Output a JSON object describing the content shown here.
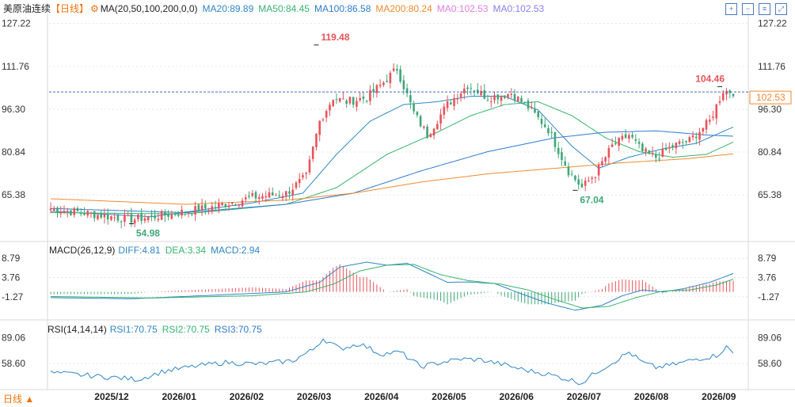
{
  "symbol": "美原油连续",
  "period_tag": "【日线】",
  "colors": {
    "up": "#e8535a",
    "down": "#3fa776",
    "ma20": "#2f86c8",
    "ma50": "#36b36f",
    "ma100": "#2e7bcf",
    "ma200": "#f08a2e",
    "diff": "#2f86c8",
    "dea": "#36b36f",
    "rsi": "#2f86c8",
    "axis_label": "#333333",
    "grid": "#e6e6e6"
  },
  "ma_header": {
    "name": "MA(20,50,100,200,0,0)",
    "ma20": "MA20:89.89",
    "ma50": "MA50:84.45",
    "ma100": "MA100:86.58",
    "ma200": "MA200:80.24",
    "ma0a": "MA0:102.53",
    "ma0b": "MA0:102.53"
  },
  "macd_header": {
    "name": "MACD(26,12,9)",
    "diff": "DIFF:4.81",
    "dea": "DEA:3.34",
    "macd": "MACD:2.94"
  },
  "rsi_header": {
    "name": "RSI(14,14,14)",
    "rsi1": "RSI1:70.75",
    "rsi2": "RSI2:70.75",
    "rsi3": "RSI3:70.75"
  },
  "toolbar_icons": [
    "zoom-in-icon",
    "zoom-out-icon",
    "chart-settings-icon",
    "expand-icon"
  ],
  "bottom_tab": "日线 ▲",
  "chart_data": [
    {
      "type": "candlestick",
      "title": "美原油连续【日线】",
      "y_ticks": [
        "127.22",
        "111.76",
        "96.30",
        "80.84",
        "65.38"
      ],
      "ylim": [
        50.0,
        130.0
      ],
      "x_tick_labels": [
        "2025/12",
        "2026/01",
        "2026/02",
        "2026/03",
        "2026/04",
        "2026/05",
        "2026/06",
        "2026/07",
        "2026/08",
        "2026/09"
      ],
      "last_price": "102.53",
      "annotations": [
        {
          "label": "119.48",
          "x_index": 79,
          "value": 119.48,
          "color": "up"
        },
        {
          "label": "54.98",
          "x_index": 24,
          "value": 54.98,
          "color": "down"
        },
        {
          "label": "67.04",
          "x_index": 156,
          "value": 67.04,
          "color": "down"
        },
        {
          "label": "104.46",
          "x_index": 199,
          "value": 104.46,
          "color": "up"
        }
      ],
      "close_anchors": [
        [
          0,
          60.5
        ],
        [
          12,
          58.5
        ],
        [
          24,
          56.5
        ],
        [
          36,
          58.5
        ],
        [
          48,
          61.0
        ],
        [
          60,
          64.5
        ],
        [
          70,
          66.0
        ],
        [
          76,
          72.0
        ],
        [
          80,
          92.0
        ],
        [
          84,
          100.5
        ],
        [
          88,
          99.0
        ],
        [
          94,
          100.5
        ],
        [
          99,
          106.0
        ],
        [
          103,
          111.0
        ],
        [
          108,
          95.0
        ],
        [
          112,
          87.0
        ],
        [
          118,
          98.0
        ],
        [
          124,
          105.0
        ],
        [
          130,
          100.5
        ],
        [
          137,
          102.0
        ],
        [
          142,
          97.0
        ],
        [
          148,
          89.0
        ],
        [
          154,
          74.0
        ],
        [
          158,
          68.0
        ],
        [
          162,
          73.0
        ],
        [
          167,
          83.0
        ],
        [
          172,
          87.0
        ],
        [
          176,
          81.0
        ],
        [
          180,
          79.0
        ],
        [
          185,
          83.0
        ],
        [
          190,
          85.0
        ],
        [
          196,
          92.0
        ],
        [
          200,
          103.0
        ],
        [
          203,
          102.53
        ]
      ],
      "ma_lines": [
        {
          "name": "MA20",
          "color": "ma20",
          "points": [
            [
              0,
              59.5
            ],
            [
              30,
              57.5
            ],
            [
              60,
              62.5
            ],
            [
              75,
              66.0
            ],
            [
              85,
              80.0
            ],
            [
              95,
              92.0
            ],
            [
              105,
              98.0
            ],
            [
              115,
              99.0
            ],
            [
              125,
              101.0
            ],
            [
              135,
              101.0
            ],
            [
              145,
              96.0
            ],
            [
              155,
              83.0
            ],
            [
              163,
              75.0
            ],
            [
              172,
              79.0
            ],
            [
              182,
              82.0
            ],
            [
              192,
              84.0
            ],
            [
              203,
              89.89
            ]
          ]
        },
        {
          "name": "MA50",
          "color": "ma50",
          "points": [
            [
              0,
              59.0
            ],
            [
              40,
              58.5
            ],
            [
              70,
              62.0
            ],
            [
              85,
              68.0
            ],
            [
              100,
              80.0
            ],
            [
              115,
              88.0
            ],
            [
              125,
              94.0
            ],
            [
              135,
              98.0
            ],
            [
              145,
              99.0
            ],
            [
              155,
              94.0
            ],
            [
              165,
              86.0
            ],
            [
              175,
              81.0
            ],
            [
              185,
              79.0
            ],
            [
              195,
              80.0
            ],
            [
              203,
              84.45
            ]
          ]
        },
        {
          "name": "MA100",
          "color": "ma100",
          "points": [
            [
              0,
              60.5
            ],
            [
              40,
              59.0
            ],
            [
              70,
              62.0
            ],
            [
              90,
              66.0
            ],
            [
              110,
              74.0
            ],
            [
              130,
              81.0
            ],
            [
              150,
              86.0
            ],
            [
              165,
              88.0
            ],
            [
              180,
              88.5
            ],
            [
              195,
              87.0
            ],
            [
              203,
              86.58
            ]
          ]
        },
        {
          "name": "MA200",
          "color": "ma200",
          "points": [
            [
              0,
              64.0
            ],
            [
              40,
              62.0
            ],
            [
              70,
              63.5
            ],
            [
              90,
              66.0
            ],
            [
              110,
              70.0
            ],
            [
              130,
              73.0
            ],
            [
              150,
              75.0
            ],
            [
              170,
              77.0
            ],
            [
              190,
              78.5
            ],
            [
              203,
              80.24
            ]
          ]
        }
      ]
    },
    {
      "type": "macd",
      "title": "MACD(26,12,9)",
      "y_ticks": [
        "8.79",
        "3.76",
        "-1.27"
      ],
      "ylim": [
        -6.5,
        10.5
      ],
      "diff_anchors": [
        [
          0,
          -1.5
        ],
        [
          24,
          -1.8
        ],
        [
          50,
          -0.8
        ],
        [
          70,
          0.0
        ],
        [
          80,
          2.5
        ],
        [
          86,
          6.5
        ],
        [
          94,
          7.8
        ],
        [
          100,
          7.0
        ],
        [
          106,
          7.5
        ],
        [
          112,
          5.0
        ],
        [
          118,
          2.5
        ],
        [
          124,
          2.6
        ],
        [
          132,
          2.2
        ],
        [
          140,
          -0.5
        ],
        [
          148,
          -3.0
        ],
        [
          156,
          -4.8
        ],
        [
          164,
          -3.5
        ],
        [
          170,
          -1.0
        ],
        [
          176,
          0.5
        ],
        [
          182,
          0.0
        ],
        [
          188,
          0.8
        ],
        [
          196,
          2.5
        ],
        [
          203,
          4.81
        ]
      ],
      "dea_anchors": [
        [
          0,
          -1.2
        ],
        [
          30,
          -1.6
        ],
        [
          60,
          -1.0
        ],
        [
          76,
          0.0
        ],
        [
          84,
          2.0
        ],
        [
          92,
          5.5
        ],
        [
          100,
          7.0
        ],
        [
          108,
          7.2
        ],
        [
          116,
          4.5
        ],
        [
          124,
          3.0
        ],
        [
          134,
          2.0
        ],
        [
          142,
          0.5
        ],
        [
          150,
          -2.0
        ],
        [
          158,
          -4.2
        ],
        [
          166,
          -3.8
        ],
        [
          174,
          -1.5
        ],
        [
          182,
          0.2
        ],
        [
          190,
          0.5
        ],
        [
          198,
          1.8
        ],
        [
          203,
          3.34
        ]
      ]
    },
    {
      "type": "line",
      "title": "RSI(14,14,14)",
      "y_ticks": [
        "89.06",
        "58.60"
      ],
      "ylim": [
        30.0,
        95.0
      ],
      "rsi_anchors": [
        [
          0,
          48.0
        ],
        [
          10,
          45.0
        ],
        [
          20,
          42.0
        ],
        [
          26,
          40.0
        ],
        [
          34,
          50.0
        ],
        [
          44,
          56.0
        ],
        [
          52,
          60.0
        ],
        [
          62,
          58.0
        ],
        [
          72,
          62.0
        ],
        [
          78,
          75.0
        ],
        [
          81,
          88.0
        ],
        [
          86,
          76.0
        ],
        [
          92,
          82.0
        ],
        [
          98,
          70.0
        ],
        [
          104,
          72.0
        ],
        [
          110,
          55.0
        ],
        [
          116,
          60.0
        ],
        [
          122,
          64.0
        ],
        [
          128,
          63.0
        ],
        [
          134,
          58.0
        ],
        [
          140,
          52.0
        ],
        [
          148,
          46.0
        ],
        [
          154,
          40.0
        ],
        [
          158,
          36.0
        ],
        [
          162,
          48.0
        ],
        [
          168,
          62.0
        ],
        [
          172,
          72.0
        ],
        [
          176,
          60.0
        ],
        [
          180,
          54.0
        ],
        [
          186,
          58.0
        ],
        [
          192,
          64.0
        ],
        [
          198,
          68.0
        ],
        [
          201,
          78.0
        ],
        [
          203,
          70.75
        ]
      ]
    }
  ]
}
